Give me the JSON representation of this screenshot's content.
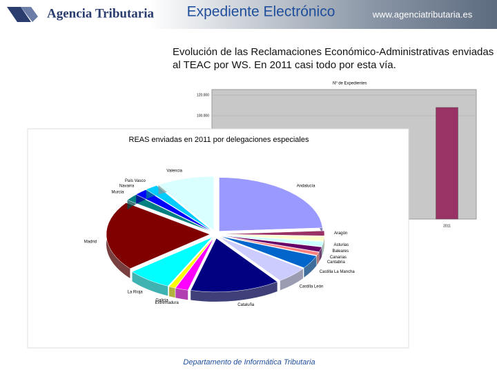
{
  "header": {
    "logo": "Agencia Tributaria",
    "title": "Expediente Electrónico",
    "url": "www.agenciatributaria.es"
  },
  "body": {
    "text": "Evolución de las Reclamaciones Económico-Administrativas enviadas al TEAC por WS. En 2011 casi todo por esta vía."
  },
  "footer": {
    "text": "Departamento de Informática Tributaria"
  },
  "chart_data": [
    {
      "type": "bar",
      "title": "Nº de Expedientes",
      "categories": [
        "2011"
      ],
      "values": [
        108000
      ],
      "color": "#993366",
      "ylim": [
        0,
        120000
      ],
      "yticks": [
        {
          "value": 100000,
          "label": "100.000"
        },
        {
          "value": 120000,
          "label": "120.000"
        }
      ]
    },
    {
      "type": "pie",
      "title": "REAS enviadas en 2011 por delegaciones especiales",
      "categories": [
        "Andalucía",
        "Aragón",
        "Asturias",
        "Baleares",
        "Canarias",
        "Cantabria",
        "Castilla La Mancha",
        "Castilla León",
        "Cataluña",
        "Extremadura",
        "Galicia",
        "La Rioja",
        "Madrid",
        "Murcia",
        "Navarra",
        "País Vasco",
        "Valencia"
      ],
      "values": [
        24,
        1.5,
        1.5,
        1.5,
        1.5,
        1,
        4,
        5,
        14,
        2,
        1,
        7,
        21,
        2,
        2,
        2,
        9
      ],
      "colors": [
        "#9999ff",
        "#993366",
        "#ffffcc",
        "#ccffff",
        "#660066",
        "#ff8080",
        "#0066cc",
        "#ccccff",
        "#000080",
        "#ff00ff",
        "#ffff00",
        "#00ffff",
        "#800000",
        "#008080",
        "#0000ff",
        "#00ccff",
        "#d9ffff"
      ]
    }
  ]
}
